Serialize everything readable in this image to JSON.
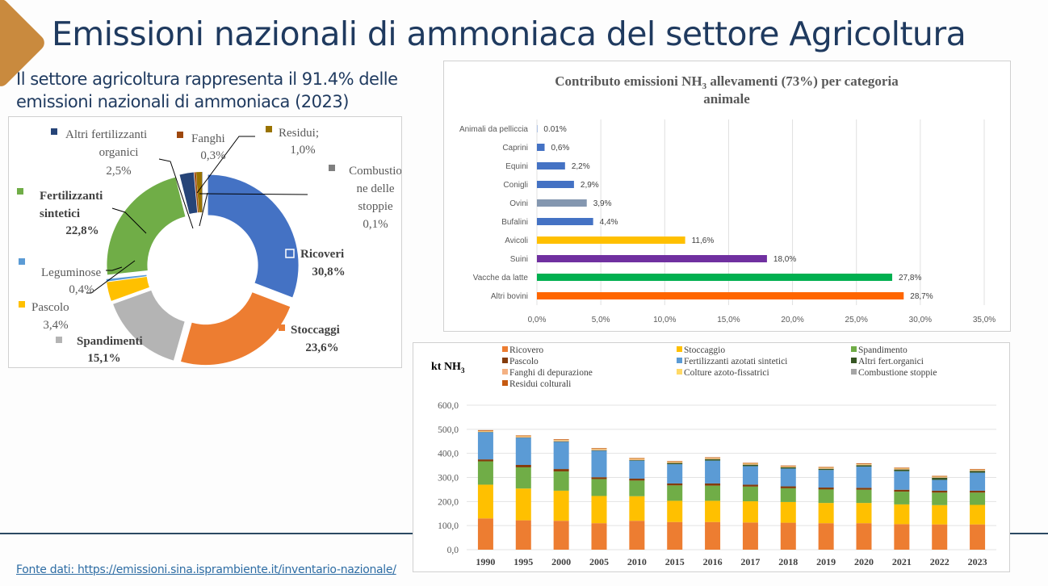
{
  "header": {
    "title": "Emissioni nazionali di ammoniaca del settore Agricoltura",
    "subtitle_line1": "Il settore agricoltura rappresenta il 91.4% delle",
    "subtitle_line2": "emissioni nazionali di ammoniaca (2023)"
  },
  "footer": {
    "source_link": "Fonte dati: https://emissioni.sina.isprambiente.it/inventario-nazionale/"
  },
  "colors": {
    "title": "#1f3a5f",
    "accent": "#c98a3e",
    "link": "#2e6da4"
  },
  "chart_data": [
    {
      "type": "pie",
      "subtype": "donut",
      "slices": [
        {
          "label": "Ricoveri",
          "value": 30.8,
          "text": "30,8%",
          "color": "#4472c4",
          "bold": true
        },
        {
          "label": "Stoccaggi",
          "value": 23.6,
          "text": "23,6%",
          "color": "#ed7d31",
          "bold": true
        },
        {
          "label": "Spandimenti",
          "value": 15.1,
          "text": "15,1%",
          "color": "#b4b4b4",
          "bold": true
        },
        {
          "label": "Pascolo",
          "value": 3.4,
          "text": "3,4%",
          "color": "#ffc000",
          "bold": false
        },
        {
          "label": "Leguminose",
          "value": 0.4,
          "text": "0,4%",
          "color": "#5b9bd5",
          "bold": false
        },
        {
          "label": "Fertilizzanti sintetici",
          "label_line1": "Fertilizzanti",
          "label_line2": "sintetici",
          "value": 22.8,
          "text": "22,8%",
          "color": "#70ad47",
          "bold": true
        },
        {
          "label": "Altri fertilizzanti organici",
          "label_line1": "Altri fertilizzanti",
          "label_line2": "organici",
          "value": 2.5,
          "text": "2,5%",
          "color": "#264478",
          "bold": false
        },
        {
          "label": "Fanghi",
          "value": 0.3,
          "text": "0,3%",
          "color": "#9e480e",
          "bold": false
        },
        {
          "label": "Residui;",
          "value": 1.0,
          "text": "1,0%",
          "color": "#997300",
          "bold": false
        },
        {
          "label": "Combustione delle stoppie",
          "label_line1": "Combustio",
          "label_line2": "ne delle",
          "label_line3": "stoppie",
          "value": 0.1,
          "text": "0,1%",
          "color": "#7f7f7f",
          "bold": false
        }
      ]
    },
    {
      "type": "bar",
      "orientation": "horizontal",
      "title_part1": "Contributo emissioni NH",
      "title_sub": "3",
      "title_part2": " allevamenti (73%) per categoria",
      "title_line2": "animale",
      "categories": [
        "Animali da pelliccia",
        "Caprini",
        "Equini",
        "Conigli",
        "Ovini",
        "Bufalini",
        "Avicoli",
        "Suini",
        "Vacche da latte",
        "Altri bovini"
      ],
      "values": [
        0.01,
        0.6,
        2.2,
        2.9,
        3.9,
        4.4,
        11.6,
        18.0,
        27.8,
        28.7
      ],
      "value_labels": [
        "0.01%",
        "0,6%",
        "2,2%",
        "2,9%",
        "3,9%",
        "4,4%",
        "11,6%",
        "18,0%",
        "27,8%",
        "28,7%"
      ],
      "colors": [
        "#4472c4",
        "#4472c4",
        "#4472c4",
        "#4472c4",
        "#8497b0",
        "#4472c4",
        "#ffc000",
        "#7030a0",
        "#00b050",
        "#ff6600"
      ],
      "xlim": [
        0,
        35
      ],
      "xticks": [
        "0,0%",
        "5,0%",
        "10,0%",
        "15,0%",
        "20,0%",
        "25,0%",
        "30,0%",
        "35,0%"
      ],
      "grid": true
    },
    {
      "type": "bar",
      "subtype": "stacked",
      "ylabel_part1": "kt NH",
      "ylabel_sub": "3",
      "ylim": [
        0,
        600
      ],
      "yticks": [
        "0,0",
        "100,0",
        "200,0",
        "300,0",
        "400,0",
        "500,0",
        "600,0"
      ],
      "categories": [
        "1990",
        "1995",
        "2000",
        "2005",
        "2010",
        "2015",
        "2016",
        "2017",
        "2018",
        "2019",
        "2020",
        "2021",
        "2022",
        "2023"
      ],
      "legend": [
        "Ricovero",
        "Stoccaggio",
        "Spandimento",
        "Pascolo",
        "Fertilizzanti azotati sintetici",
        "Altri fert.organici",
        "Fanghi di depurazione",
        "Colture azoto-fissatrici",
        "Combustione stoppie",
        "Residui colturali"
      ],
      "series": [
        {
          "name": "Ricovero",
          "color": "#ed7d31",
          "values": [
            130,
            122,
            120,
            110,
            120,
            115,
            115,
            113,
            112,
            110,
            110,
            106,
            105,
            105
          ]
        },
        {
          "name": "Stoccaggio",
          "color": "#ffc000",
          "values": [
            140,
            132,
            125,
            113,
            102,
            88,
            88,
            88,
            86,
            84,
            84,
            82,
            80,
            81
          ]
        },
        {
          "name": "Spandimento",
          "color": "#70ad47",
          "values": [
            97,
            88,
            80,
            70,
            65,
            64,
            63,
            61,
            57,
            56,
            55,
            53,
            52,
            51
          ]
        },
        {
          "name": "Pascolo",
          "color": "#843c0c",
          "values": [
            8,
            10,
            10,
            8,
            8,
            8,
            9,
            8,
            8,
            8,
            8,
            8,
            8,
            8
          ]
        },
        {
          "name": "Fertilizzanti azotati sintetici",
          "color": "#5b9bd5",
          "values": [
            113,
            113,
            113,
            110,
            75,
            80,
            95,
            77,
            74,
            73,
            88,
            77,
            45,
            75
          ]
        },
        {
          "name": "Altri fert.organici",
          "color": "#375623",
          "values": [
            1,
            1,
            2,
            2,
            2,
            5,
            6,
            6,
            5,
            5,
            6,
            7,
            9,
            7
          ]
        },
        {
          "name": "Fanghi di depurazione",
          "color": "#f4b183",
          "values": [
            2,
            3,
            3,
            3,
            3,
            2,
            2,
            2,
            2,
            2,
            2,
            2,
            2,
            2
          ]
        },
        {
          "name": "Colture azoto-fissatrici",
          "color": "#ffd966",
          "values": [
            2,
            2,
            2,
            2,
            2,
            2,
            2,
            2,
            2,
            2,
            2,
            2,
            2,
            2
          ]
        },
        {
          "name": "Combustione stoppie",
          "color": "#a5a5a5",
          "values": [
            0.5,
            0.5,
            0.5,
            0.5,
            0.5,
            0.5,
            0.5,
            0.5,
            0.5,
            0.5,
            0.5,
            0.5,
            0.5,
            0.5
          ]
        },
        {
          "name": "Residui colturali",
          "color": "#c55a11",
          "values": [
            3,
            3,
            3,
            3,
            3,
            3,
            3,
            3,
            3,
            3,
            3,
            3,
            3,
            3
          ]
        }
      ],
      "grid": true,
      "legend_position": "top"
    }
  ]
}
